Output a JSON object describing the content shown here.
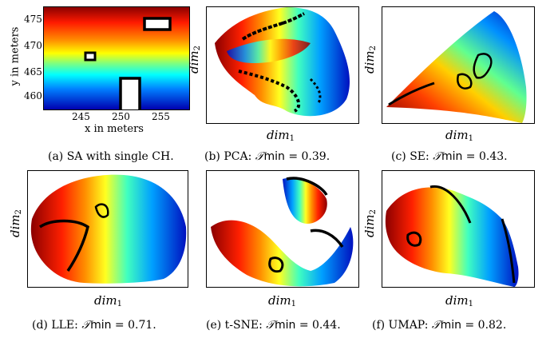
{
  "panels": [
    {
      "id": "a",
      "caption": "(a) SA with single CH.",
      "xlabel": "x in meters",
      "ylabel": "y in meters",
      "xticks": [
        "245",
        "250",
        "255"
      ],
      "yticks": [
        "475",
        "470",
        "465",
        "460"
      ]
    },
    {
      "id": "b",
      "caption_prefix": "(b) PCA: ",
      "caption_suffix": " = 0.39.",
      "xlabel": "dim",
      "ylabel": "dim"
    },
    {
      "id": "c",
      "caption_prefix": "(c) SE: ",
      "caption_suffix": " = 0.43.",
      "xlabel": "dim",
      "ylabel": "dim"
    },
    {
      "id": "d",
      "caption_prefix": "(d) LLE: ",
      "caption_suffix": " = 0.71.",
      "xlabel": "dim",
      "ylabel": "dim"
    },
    {
      "id": "e",
      "caption_prefix": "(e) t-SNE: ",
      "caption_suffix": " = 0.44.",
      "xlabel": "dim",
      "ylabel": "dim"
    },
    {
      "id": "f",
      "caption_prefix": "(f) UMAP: ",
      "caption_suffix": " = 0.82.",
      "xlabel": "dim",
      "ylabel": "dim"
    }
  ],
  "metric": {
    "symbol": "𝒯",
    "func": "min"
  },
  "sub": {
    "x": "1",
    "y": "2"
  }
}
